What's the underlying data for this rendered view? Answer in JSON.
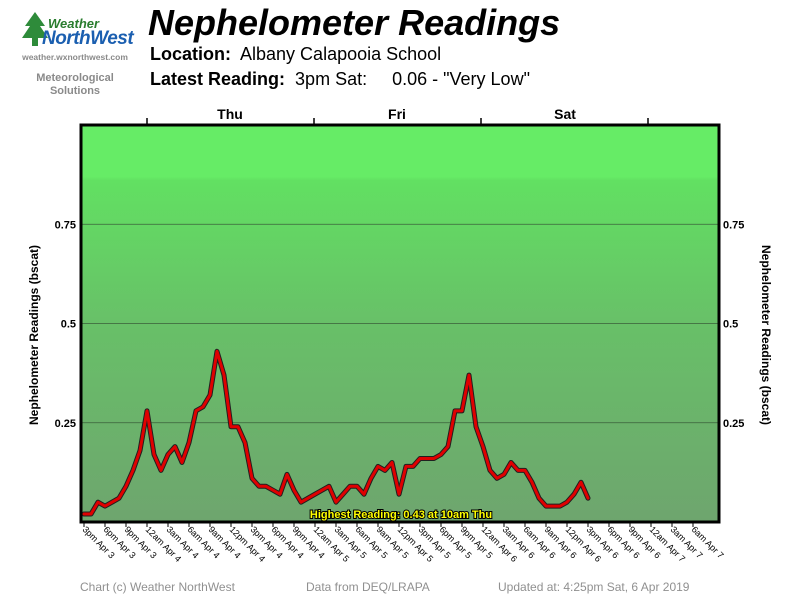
{
  "header": {
    "title": "Nephelometer Readings",
    "location_label": "Location:",
    "location_value": "Albany Calapooia School",
    "latest_label": "Latest Reading:",
    "latest_time": "3pm Sat:",
    "latest_value": "0.06 - \"Very Low\""
  },
  "logo": {
    "word1": "Weather",
    "word2": "NorthWest",
    "url": "weather.wxnorthwest.com",
    "tagline_line1": "Meteorological",
    "tagline_line2": "Solutions"
  },
  "days": [
    "Thu",
    "Fri",
    "Sat"
  ],
  "footer": {
    "copyright": "Chart (c) Weather NorthWest",
    "source": "Data from DEQ/LRAPA",
    "updated": "Updated at: 4:25pm Sat, 6 Apr 2019"
  },
  "colors": {
    "line": "#e00000",
    "line_shadow": "#202020",
    "band_top": "#66ec66",
    "band_bottom": "#6fa86f",
    "highlight_text": "#ffff00"
  },
  "chart_data": {
    "type": "line",
    "title": "Nephelometer Readings",
    "ylabel": "Nephelometer Readings (bscat)",
    "ylim": [
      0,
      1
    ],
    "yticks": [
      0.25,
      0.5,
      0.75
    ],
    "ytick_labels": [
      "0.25",
      "0.5",
      "0.75"
    ],
    "x_interval_hours": 3,
    "xtick_labels": [
      "3pm Apr 3",
      "6pm Apr 3",
      "9pm Apr 3",
      "12am Apr 4",
      "3am Apr 4",
      "6am Apr 4",
      "9am Apr 4",
      "12pm Apr 4",
      "3pm Apr 4",
      "6pm Apr 4",
      "9pm Apr 4",
      "12am Apr 5",
      "3am Apr 5",
      "6am Apr 5",
      "9am Apr 5",
      "12pm Apr 5",
      "3pm Apr 5",
      "6pm Apr 5",
      "9pm Apr 5",
      "12am Apr 6",
      "3am Apr 6",
      "6am Apr 6",
      "9am Apr 6",
      "12pm Apr 6",
      "3pm Apr 6",
      "6pm Apr 6",
      "9pm Apr 6",
      "12am Apr 7",
      "3am Apr 7",
      "6am Apr 7"
    ],
    "series": [
      {
        "values": [
          0.02,
          0.02,
          0.05,
          0.04,
          0.05,
          0.06,
          0.09,
          0.13,
          0.18,
          0.28,
          0.17,
          0.13,
          0.17,
          0.19,
          0.15,
          0.2,
          0.28,
          0.29,
          0.32,
          0.43,
          0.37,
          0.24,
          0.24,
          0.2,
          0.11,
          0.09,
          0.09,
          0.08,
          0.07,
          0.12,
          0.08,
          0.05,
          0.06,
          0.07,
          0.08,
          0.09,
          0.05,
          0.07,
          0.09,
          0.09,
          0.07,
          0.11,
          0.14,
          0.13,
          0.15,
          0.07,
          0.14,
          0.14,
          0.16,
          0.16,
          0.16,
          0.17,
          0.19,
          0.28,
          0.28,
          0.37,
          0.24,
          0.19,
          0.13,
          0.11,
          0.12,
          0.15,
          0.13,
          0.13,
          0.1,
          0.06,
          0.04,
          0.04,
          0.04,
          0.05,
          0.07,
          0.1,
          0.06
        ]
      }
    ],
    "annotation": "Highest Reading: 0.43 at 10am Thu"
  }
}
